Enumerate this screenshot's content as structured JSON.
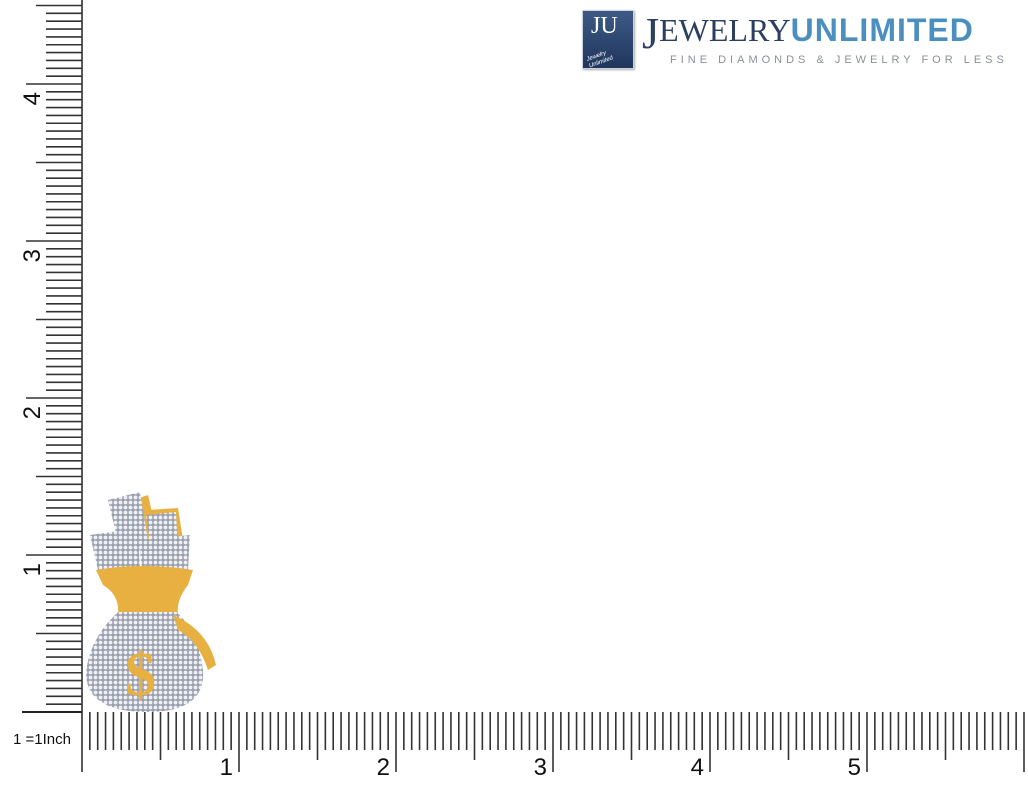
{
  "logo": {
    "badge": "JU",
    "badge_small": "Jewelry Unlimited",
    "brand_first": "J",
    "brand_rest": "EWELRY",
    "brand_second": "UNLIMITED",
    "tagline": "FINE DIAMONDS & JEWELRY FOR LESS",
    "colors": {
      "navy": "#2c3f63",
      "blue": "#4a8fc0"
    }
  },
  "ruler": {
    "scale_label": "1 =1Inch",
    "unit": "inch",
    "horizontal_labels": [
      "1",
      "2",
      "3",
      "4",
      "5"
    ],
    "vertical_labels": [
      "1",
      "2",
      "3",
      "4"
    ],
    "ticks_per_inch": 20
  },
  "product": {
    "icon": "money-bag-pendant",
    "colors": {
      "gold": "#e8b040",
      "diamond": "#d8dbe3"
    }
  }
}
